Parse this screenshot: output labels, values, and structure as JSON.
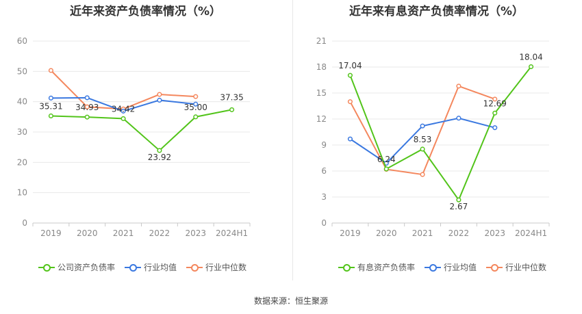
{
  "charts": [
    {
      "title": "近年来资产负债率情况（%）",
      "chart_data": {
        "type": "line",
        "categories": [
          "2019",
          "2020",
          "2021",
          "2022",
          "2023",
          "2024H1"
        ],
        "ylim": [
          0,
          60
        ],
        "yticks": [
          0,
          10,
          20,
          30,
          40,
          50,
          60
        ],
        "series": [
          {
            "name": "公司资产负债率",
            "color": "#52c41a",
            "values": [
              35.31,
              34.93,
              34.42,
              23.92,
              35.0,
              37.35
            ],
            "labels": [
              "35.31",
              "34.93",
              "34.42",
              "23.92",
              "35.00",
              "37.35"
            ]
          },
          {
            "name": "行业均值",
            "color": "#3a78e0",
            "values": [
              41.2,
              41.3,
              36.9,
              40.5,
              39.2,
              null
            ]
          },
          {
            "name": "行业中位数",
            "color": "#f4875d",
            "values": [
              50.3,
              38.3,
              37.6,
              42.4,
              41.7,
              null
            ]
          }
        ]
      }
    },
    {
      "title": "近年来有息资产负债率情况（%）",
      "chart_data": {
        "type": "line",
        "categories": [
          "2019",
          "2020",
          "2021",
          "2022",
          "2023",
          "2024H1"
        ],
        "ylim": [
          0,
          21
        ],
        "yticks": [
          0,
          3,
          6,
          9,
          12,
          15,
          18,
          21
        ],
        "series": [
          {
            "name": "有息资产负债率",
            "color": "#52c41a",
            "values": [
              17.04,
              6.24,
              8.53,
              2.67,
              12.69,
              18.04
            ],
            "labels": [
              "17.04",
              "6.24",
              "8.53",
              "2.67",
              "12.69",
              "18.04"
            ]
          },
          {
            "name": "行业均值",
            "color": "#3a78e0",
            "values": [
              9.7,
              6.9,
              11.2,
              12.1,
              11.0,
              null
            ]
          },
          {
            "name": "行业中位数",
            "color": "#f4875d",
            "values": [
              14.0,
              6.2,
              5.6,
              15.8,
              14.3,
              null
            ]
          }
        ]
      }
    }
  ],
  "source": "数据来源：恒生聚源"
}
